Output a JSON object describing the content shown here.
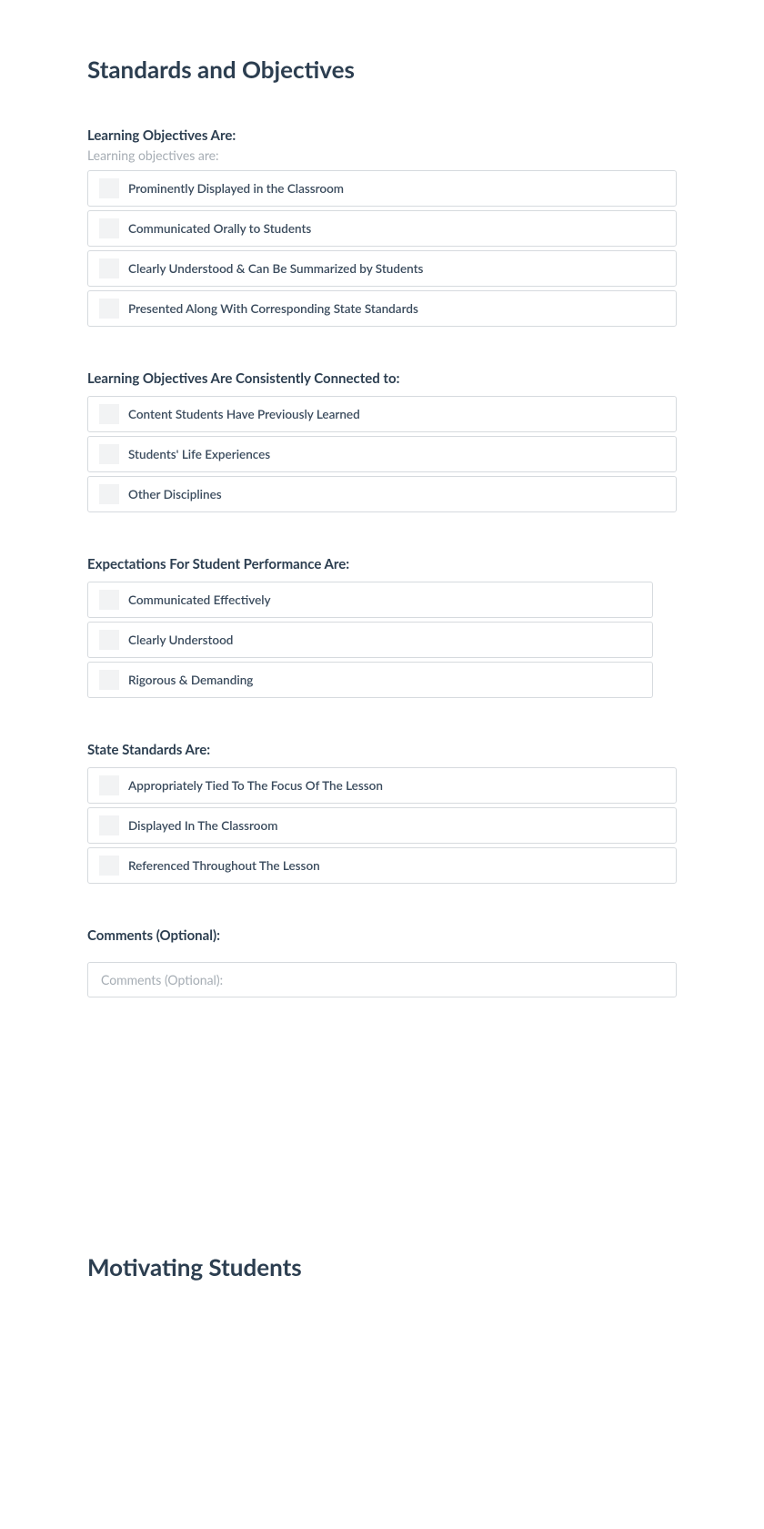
{
  "page": {
    "title": "Standards and Objectives",
    "next_title": "Motivating Students"
  },
  "groups": [
    {
      "label": "Learning Objectives Are:",
      "sublabel": "Learning objectives are:",
      "items": [
        "Prominently Displayed in the Classroom",
        "Communicated Orally to Students",
        "Clearly Understood & Can Be Summarized by Students",
        "Presented Along With Corresponding State Standards"
      ]
    },
    {
      "label": "Learning Objectives Are Consistently Connected to:",
      "items": [
        "Content Students Have Previously Learned",
        "Students' Life Experiences",
        "Other Disciplines"
      ]
    },
    {
      "label": "Expectations For Student Performance Are:",
      "narrow": true,
      "items": [
        "Communicated Effectively",
        "Clearly Understood",
        "Rigorous & Demanding"
      ]
    },
    {
      "label": "State Standards Are:",
      "items": [
        "Appropriately Tied To The Focus Of The Lesson",
        "Displayed In The Classroom",
        "Referenced Throughout The Lesson"
      ]
    }
  ],
  "comments": {
    "label": "Comments (Optional):",
    "placeholder": "Comments (Optional):"
  }
}
